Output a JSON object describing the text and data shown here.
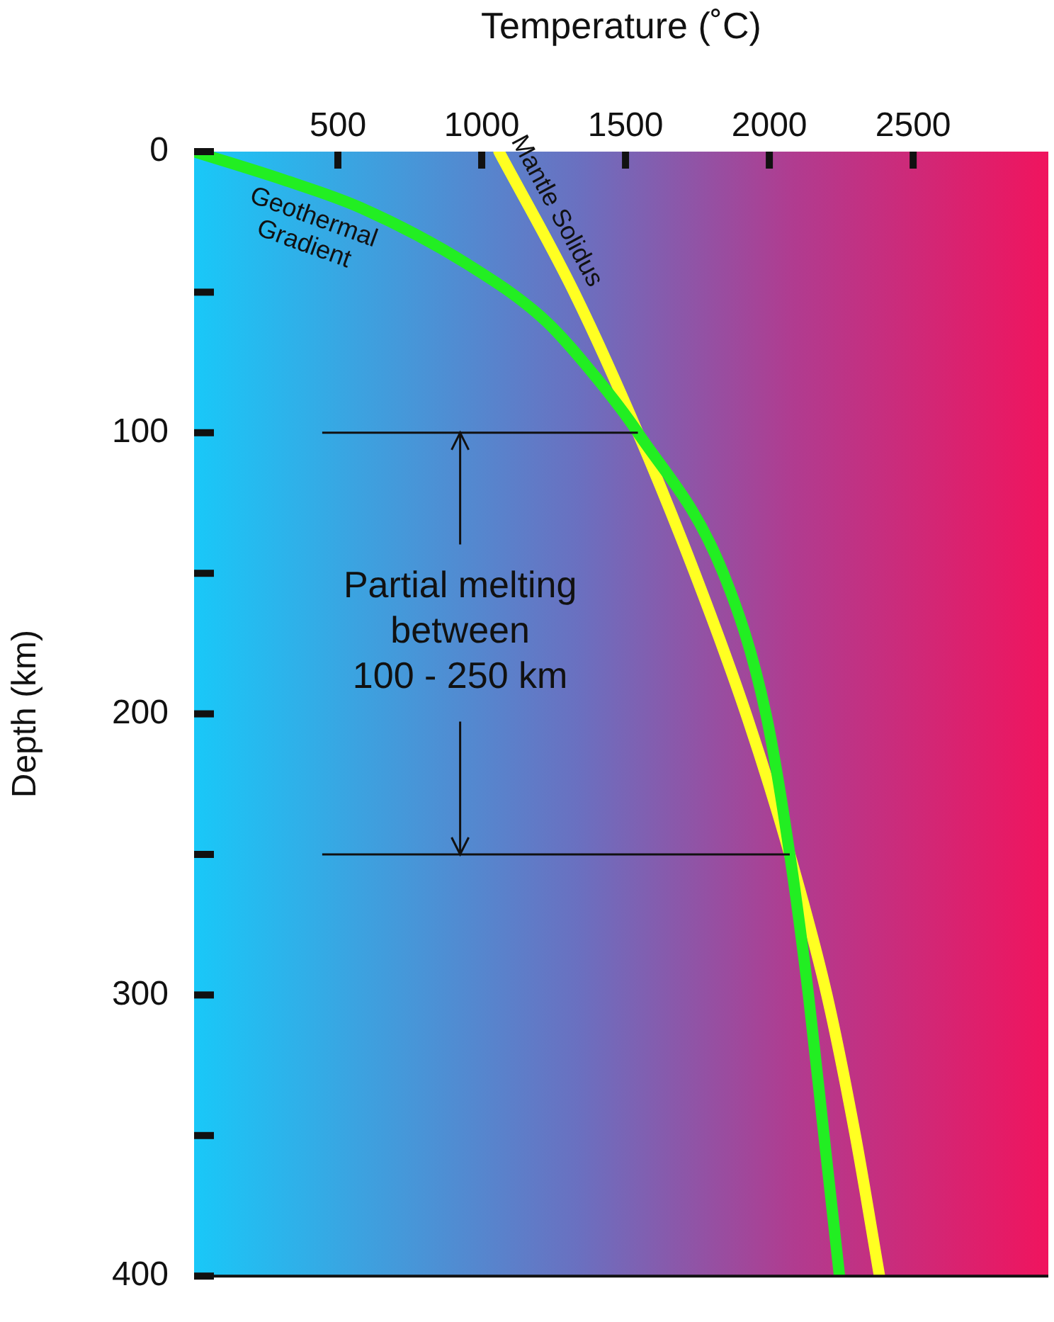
{
  "chart_data": {
    "type": "line",
    "xlabel": "Temperature (˚C)",
    "ylabel": "Depth (km)",
    "xlim": [
      0,
      2970
    ],
    "xticks": [
      500,
      1000,
      1500,
      2000,
      2500
    ],
    "ylim": [
      400,
      0
    ],
    "yticks": [
      0,
      {
        "value": 50,
        "label": null
      },
      100,
      {
        "value": 150,
        "label": null
      },
      200,
      {
        "value": 250,
        "label": null
      },
      300,
      {
        "value": 350,
        "label": null
      },
      400
    ],
    "grid": false,
    "legend": false,
    "marker": "none",
    "line_style": "solid",
    "series": [
      {
        "name": "Geothermal Gradient",
        "color": "#22ee22",
        "x": [
          0,
          310,
          580,
          950,
          1220,
          1395,
          1543,
          1840,
          1988,
          2071,
          2136,
          2190,
          2244
        ],
        "values": [
          0,
          10,
          20,
          40,
          60,
          80,
          100,
          150,
          200,
          250,
          300,
          350,
          400
        ]
      },
      {
        "name": "Mantle Solidus",
        "color": "#ffff22",
        "x": [
          1060,
          1321,
          1543,
          1741,
          1919,
          2071,
          2200,
          2299,
          2383
        ],
        "values": [
          0,
          50,
          100,
          150,
          200,
          250,
          300,
          350,
          400
        ]
      }
    ],
    "ref_lines": [
      {
        "axis": "y",
        "value": 100
      },
      {
        "axis": "y",
        "value": 250
      }
    ],
    "annotations": [
      {
        "text": "Partial melting between 100 - 250 km",
        "x": 925,
        "y": 100
      }
    ]
  }
}
